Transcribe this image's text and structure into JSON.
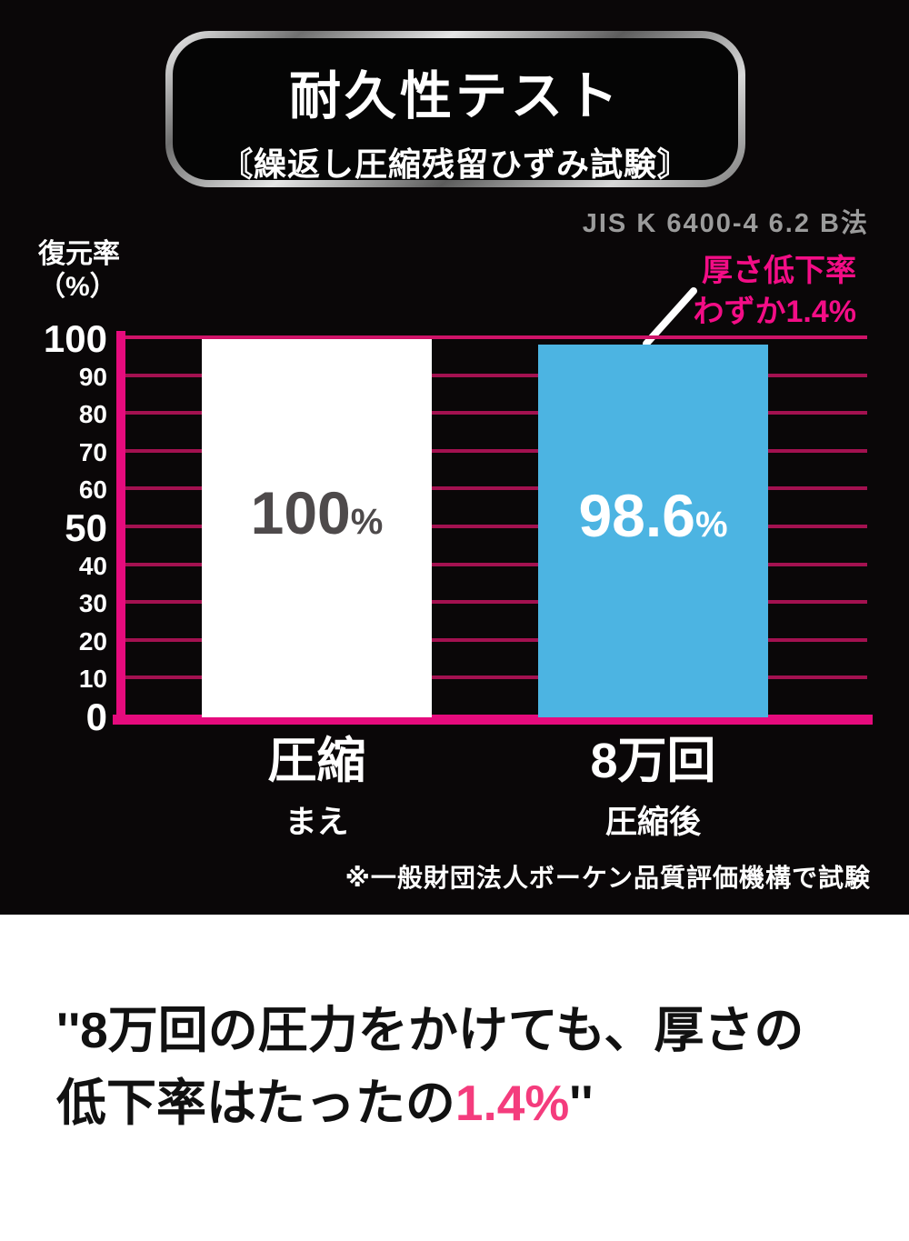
{
  "header": {
    "title": "耐久性テスト",
    "subtitle": "〘繰返し圧縮残留ひずみ試験〙",
    "standard_note": "JIS K 6400-4 6.2 B法"
  },
  "chart_data": {
    "type": "bar",
    "title": "耐久性テスト（繰返し圧縮残留ひずみ試験）",
    "ylabel": "復元率\n（%）",
    "ylim": [
      0,
      100
    ],
    "ytick_step": 10,
    "ytick_major": [
      0,
      50,
      100
    ],
    "grid": true,
    "legend": "none",
    "categories": [
      {
        "main": "圧縮",
        "sub": "まえ"
      },
      {
        "main": "8万回",
        "sub": "圧縮後"
      }
    ],
    "values": [
      100,
      98.6
    ],
    "value_labels": [
      "100",
      "98.6"
    ],
    "value_suffix": "%",
    "bar_colors": [
      "#ffffff",
      "#4cb4e2"
    ],
    "value_label_colors": [
      "#4e4a4b",
      "#ffffff"
    ],
    "axis_color": "#e60b7d",
    "grid_color": "#a31150"
  },
  "annotation": {
    "line1": "厚さ低下率",
    "line2": "わずか1.4%",
    "color": "#f30d86"
  },
  "footnote": "※一般財団法人ボーケン品質評価機構で試験",
  "caption": {
    "open_quote": "''",
    "line1": "8万回の圧力をかけても、厚さの",
    "line2_plain": "低下率はたったの",
    "line2_highlight": "1.4%",
    "close_quote": "''",
    "highlight_color": "#f43c7d"
  }
}
